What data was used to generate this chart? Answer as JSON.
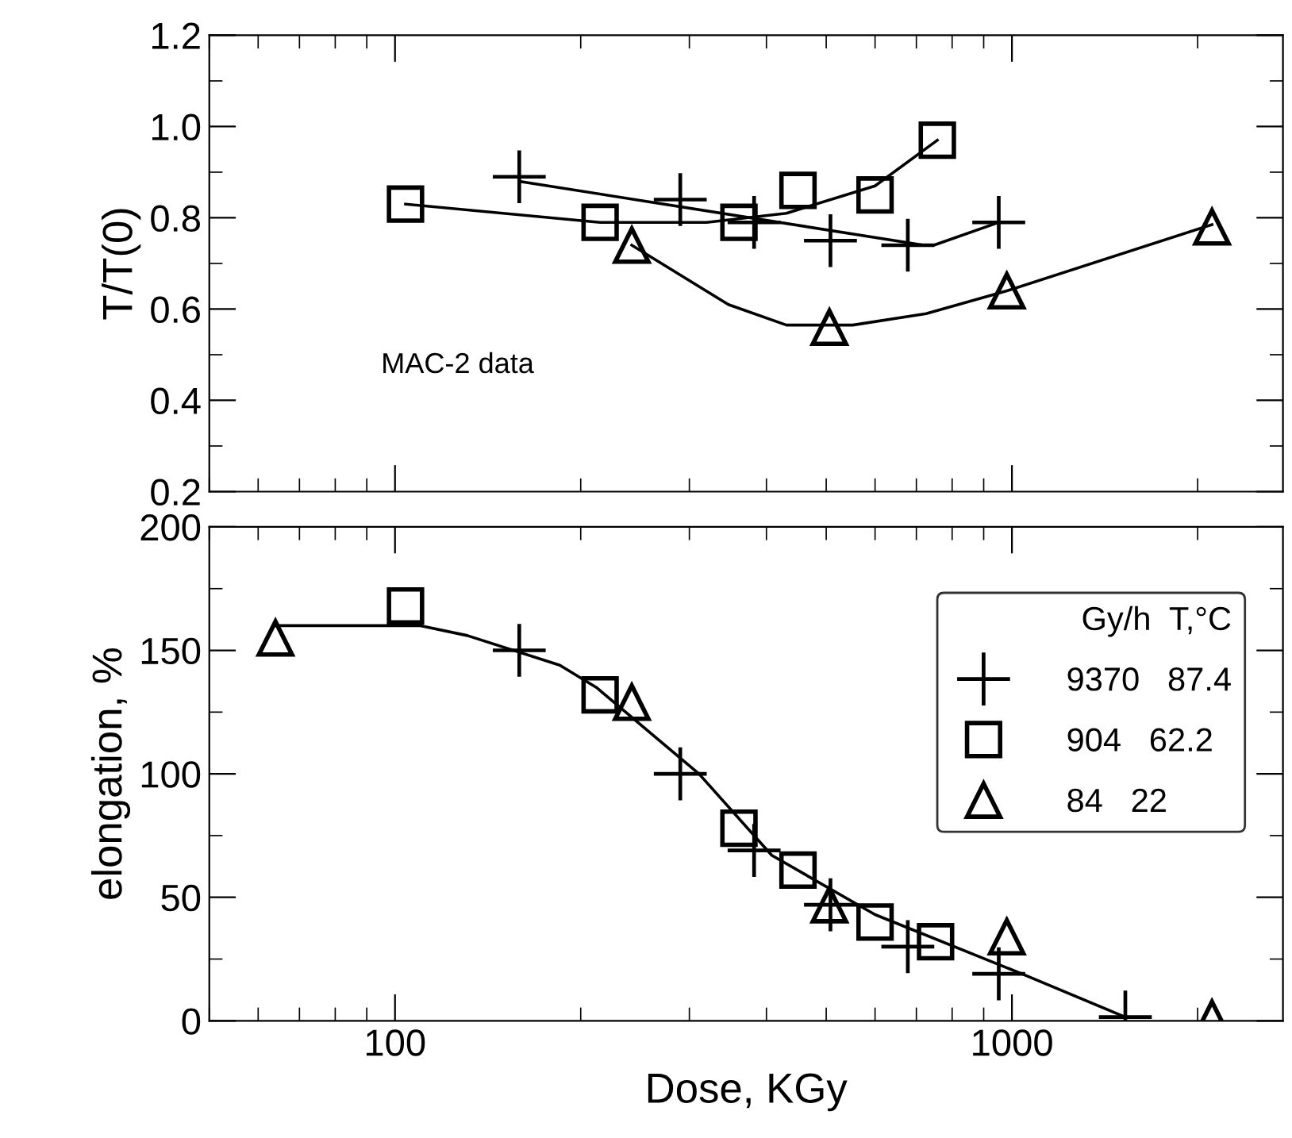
{
  "chart_data": [
    {
      "type": "scatter",
      "ylabel": "T/T(0)",
      "xlim": [
        50,
        2750
      ],
      "xticks": [
        100,
        1000
      ],
      "ylim": [
        0.2,
        1.2
      ],
      "yticks": [
        0.2,
        0.4,
        0.6,
        0.8,
        {
          "value": 1,
          "label": "1.0"
        },
        1.2
      ],
      "log": "x",
      "grid": false,
      "tick_labels": "y",
      "annotations": [
        "MAC-2 data"
      ],
      "series": [
        {
          "marker": "cross",
          "color": "#000000",
          "x": [
            159,
            290,
            382,
            508,
            678,
            952
          ],
          "values": [
            0.89,
            0.84,
            0.79,
            0.75,
            0.74,
            0.79
          ]
        },
        {
          "marker": "square",
          "color": "#000000",
          "x": [
            104,
            215,
            361,
            450,
            600,
            757
          ],
          "values": [
            0.83,
            0.79,
            0.79,
            0.86,
            0.85,
            0.97
          ]
        },
        {
          "marker": "triangle",
          "color": "#000000",
          "x": [
            242,
            506,
            981,
            2110
          ],
          "values": [
            0.74,
            0.56,
            0.64,
            0.78
          ]
        },
        {
          "type": "line",
          "marker": "none",
          "color": "#000000",
          "x": [
            159,
            720,
            747,
            952
          ],
          "values": [
            0.88,
            0.74,
            0.74,
            0.79
          ]
        },
        {
          "type": "line",
          "marker": "none",
          "color": "#000000",
          "x": [
            104,
            215,
            320,
            431,
            600,
            757
          ],
          "values": [
            0.83,
            0.79,
            0.79,
            0.81,
            0.87,
            0.97
          ]
        },
        {
          "type": "line",
          "marker": "none",
          "color": "#000000",
          "x": [
            242,
            347,
            431,
            552,
            726,
            981,
            2110
          ],
          "values": [
            0.74,
            0.61,
            0.565,
            0.565,
            0.59,
            0.64,
            0.785
          ]
        }
      ]
    },
    {
      "type": "scatter",
      "xlabel": "Dose, KGy",
      "ylabel": "elongation, %",
      "xlim": [
        50,
        2750
      ],
      "xticks": [
        100,
        1000
      ],
      "ylim": [
        0,
        200
      ],
      "yticks": [
        0,
        50,
        100,
        150,
        200
      ],
      "log": "x",
      "grid": false,
      "legend": "top right",
      "legend_title": "Gy/h  T,°C",
      "series": [
        {
          "name": "9370   87.4",
          "marker": "cross",
          "color": "#000000",
          "x": [
            159,
            290,
            382,
            508,
            678,
            952,
            1527
          ],
          "values": [
            150,
            100,
            69,
            47,
            30,
            19,
            1.5
          ]
        },
        {
          "name": "904   62.2",
          "marker": "square",
          "color": "#000000",
          "x": [
            104,
            215,
            361,
            450,
            600,
            752
          ],
          "values": [
            168,
            132,
            78,
            61,
            40,
            32
          ]
        },
        {
          "name": "84   22",
          "marker": "triangle",
          "color": "#000000",
          "x": [
            64,
            242,
            506,
            981,
            2110
          ],
          "values": [
            155,
            129,
            47,
            34,
            1
          ]
        },
        {
          "type": "line",
          "marker": "none",
          "color": "#000000",
          "x": [
            64,
            110,
            131,
            185,
            212,
            311,
            408,
            600,
            1038,
            1527
          ],
          "values": [
            160,
            160,
            156,
            144,
            135,
            100,
            67,
            43,
            19,
            1.5
          ]
        }
      ]
    }
  ]
}
